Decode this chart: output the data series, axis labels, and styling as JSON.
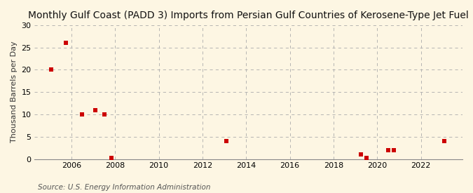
{
  "title": "Monthly Gulf Coast (PADD 3) Imports from Persian Gulf Countries of Kerosene-Type Jet Fuel",
  "ylabel": "Thousand Barrels per Day",
  "source": "Source: U.S. Energy Information Administration",
  "background_color": "#fdf6e3",
  "plot_background_color": "#fdf6e3",
  "marker_color": "#cc0000",
  "marker_size": 18,
  "xlim": [
    2004.3,
    2023.9
  ],
  "ylim": [
    0,
    30
  ],
  "yticks": [
    0,
    5,
    10,
    15,
    20,
    25,
    30
  ],
  "xticks": [
    2006,
    2008,
    2010,
    2012,
    2014,
    2016,
    2018,
    2020,
    2022
  ],
  "grid_color": "#aaaaaa",
  "data_x": [
    2005.08,
    2005.75,
    2006.5,
    2007.08,
    2007.5,
    2007.83,
    2013.08,
    2019.25,
    2019.5,
    2020.5,
    2020.75,
    2023.08
  ],
  "data_y": [
    20,
    26,
    10,
    11,
    10,
    0.3,
    4,
    1,
    0.2,
    2,
    2,
    4
  ],
  "title_fontsize": 10,
  "ylabel_fontsize": 8,
  "tick_fontsize": 8,
  "source_fontsize": 7.5
}
